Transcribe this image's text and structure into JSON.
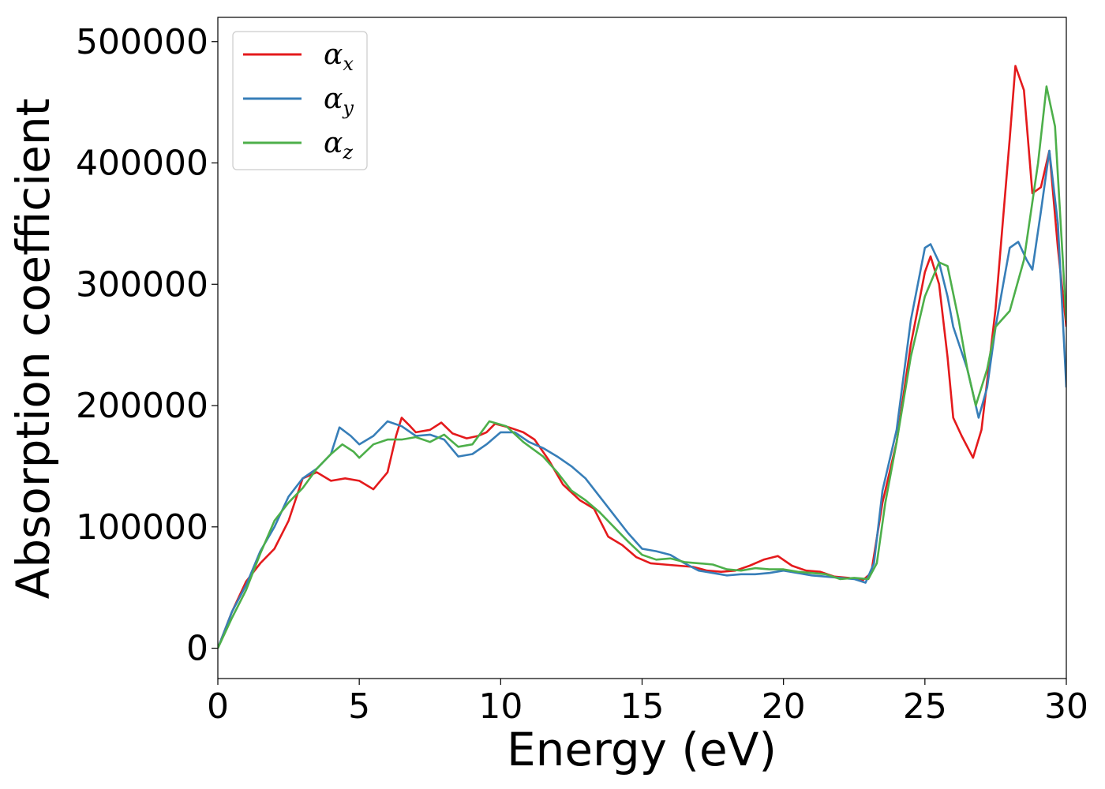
{
  "chart_data": {
    "type": "line",
    "title": "",
    "xlabel": "Energy (eV)",
    "ylabel": "Absorption coefficient",
    "xlim": [
      0,
      30
    ],
    "ylim": [
      -25000,
      520000
    ],
    "xticks": [
      "0",
      "5",
      "10",
      "15",
      "20",
      "25",
      "30"
    ],
    "yticks": [
      "0",
      "100000",
      "200000",
      "300000",
      "400000",
      "500000"
    ],
    "grid": false,
    "legend_position": "top-left",
    "series": [
      {
        "name": "α",
        "subscript": "x",
        "color": "#e41a1c",
        "points": [
          [
            0,
            0
          ],
          [
            0.5,
            30000
          ],
          [
            1,
            55000
          ],
          [
            1.5,
            70000
          ],
          [
            2,
            82000
          ],
          [
            2.5,
            105000
          ],
          [
            3,
            140000
          ],
          [
            3.5,
            145000
          ],
          [
            4,
            138000
          ],
          [
            4.5,
            140000
          ],
          [
            5,
            138000
          ],
          [
            5.5,
            131000
          ],
          [
            6,
            145000
          ],
          [
            6.3,
            175000
          ],
          [
            6.5,
            190000
          ],
          [
            6.8,
            183000
          ],
          [
            7,
            178000
          ],
          [
            7.5,
            180000
          ],
          [
            7.9,
            186000
          ],
          [
            8.3,
            177000
          ],
          [
            8.8,
            173000
          ],
          [
            9.2,
            175000
          ],
          [
            9.5,
            178000
          ],
          [
            9.8,
            185000
          ],
          [
            10.3,
            182000
          ],
          [
            10.8,
            178000
          ],
          [
            11.2,
            172000
          ],
          [
            11.7,
            155000
          ],
          [
            12.2,
            135000
          ],
          [
            12.8,
            122000
          ],
          [
            13.3,
            115000
          ],
          [
            13.8,
            92000
          ],
          [
            14.3,
            85000
          ],
          [
            14.8,
            75000
          ],
          [
            15.3,
            70000
          ],
          [
            15.8,
            69000
          ],
          [
            16.3,
            68000
          ],
          [
            16.8,
            67000
          ],
          [
            17.3,
            64000
          ],
          [
            17.8,
            63000
          ],
          [
            18.3,
            64000
          ],
          [
            18.8,
            68000
          ],
          [
            19.3,
            73000
          ],
          [
            19.8,
            76000
          ],
          [
            20.3,
            68000
          ],
          [
            20.8,
            64000
          ],
          [
            21.3,
            63000
          ],
          [
            21.8,
            59000
          ],
          [
            22.3,
            58000
          ],
          [
            22.8,
            56000
          ],
          [
            23.1,
            62000
          ],
          [
            23.5,
            120000
          ],
          [
            24,
            170000
          ],
          [
            24.5,
            250000
          ],
          [
            25,
            310000
          ],
          [
            25.2,
            323000
          ],
          [
            25.5,
            300000
          ],
          [
            25.8,
            240000
          ],
          [
            26,
            190000
          ],
          [
            26.3,
            175000
          ],
          [
            26.7,
            157000
          ],
          [
            27,
            180000
          ],
          [
            27.5,
            280000
          ],
          [
            28,
            420000
          ],
          [
            28.2,
            480000
          ],
          [
            28.5,
            460000
          ],
          [
            28.8,
            375000
          ],
          [
            29.1,
            380000
          ],
          [
            29.4,
            410000
          ],
          [
            29.7,
            330000
          ],
          [
            30,
            265000
          ]
        ]
      },
      {
        "name": "α",
        "subscript": "y",
        "color": "#377eb8",
        "points": [
          [
            0,
            0
          ],
          [
            0.5,
            30000
          ],
          [
            1,
            52000
          ],
          [
            1.5,
            80000
          ],
          [
            2,
            100000
          ],
          [
            2.5,
            125000
          ],
          [
            3,
            140000
          ],
          [
            3.5,
            148000
          ],
          [
            4,
            160000
          ],
          [
            4.3,
            182000
          ],
          [
            4.7,
            175000
          ],
          [
            5,
            168000
          ],
          [
            5.5,
            175000
          ],
          [
            6,
            187000
          ],
          [
            6.5,
            183000
          ],
          [
            7,
            175000
          ],
          [
            7.5,
            176000
          ],
          [
            8,
            172000
          ],
          [
            8.5,
            158000
          ],
          [
            9,
            160000
          ],
          [
            9.5,
            168000
          ],
          [
            10,
            178000
          ],
          [
            10.5,
            178000
          ],
          [
            11,
            170000
          ],
          [
            11.5,
            165000
          ],
          [
            12,
            158000
          ],
          [
            12.5,
            150000
          ],
          [
            13,
            140000
          ],
          [
            13.5,
            125000
          ],
          [
            14,
            110000
          ],
          [
            14.5,
            95000
          ],
          [
            15,
            82000
          ],
          [
            15.5,
            80000
          ],
          [
            16,
            77000
          ],
          [
            16.5,
            70000
          ],
          [
            17,
            64000
          ],
          [
            17.5,
            62000
          ],
          [
            18,
            60000
          ],
          [
            18.5,
            61000
          ],
          [
            19,
            61000
          ],
          [
            19.5,
            62000
          ],
          [
            20,
            64000
          ],
          [
            20.5,
            62000
          ],
          [
            21,
            60000
          ],
          [
            21.5,
            59000
          ],
          [
            22,
            58000
          ],
          [
            22.5,
            57000
          ],
          [
            22.9,
            54000
          ],
          [
            23.2,
            70000
          ],
          [
            23.5,
            130000
          ],
          [
            24,
            180000
          ],
          [
            24.5,
            270000
          ],
          [
            25,
            330000
          ],
          [
            25.2,
            333000
          ],
          [
            25.5,
            318000
          ],
          [
            25.8,
            290000
          ],
          [
            26,
            265000
          ],
          [
            26.5,
            230000
          ],
          [
            26.9,
            190000
          ],
          [
            27.2,
            215000
          ],
          [
            27.5,
            265000
          ],
          [
            28,
            330000
          ],
          [
            28.3,
            335000
          ],
          [
            28.6,
            320000
          ],
          [
            28.8,
            312000
          ],
          [
            29.1,
            360000
          ],
          [
            29.4,
            410000
          ],
          [
            29.7,
            350000
          ],
          [
            30,
            215000
          ]
        ]
      },
      {
        "name": "α",
        "subscript": "z",
        "color": "#4daf4a",
        "points": [
          [
            0,
            0
          ],
          [
            0.5,
            25000
          ],
          [
            1,
            48000
          ],
          [
            1.5,
            78000
          ],
          [
            2,
            105000
          ],
          [
            2.5,
            120000
          ],
          [
            3,
            132000
          ],
          [
            3.5,
            148000
          ],
          [
            4,
            160000
          ],
          [
            4.4,
            168000
          ],
          [
            4.8,
            162000
          ],
          [
            5,
            157000
          ],
          [
            5.5,
            168000
          ],
          [
            6,
            172000
          ],
          [
            6.5,
            172000
          ],
          [
            7,
            174000
          ],
          [
            7.5,
            170000
          ],
          [
            8,
            176000
          ],
          [
            8.5,
            166000
          ],
          [
            9,
            168000
          ],
          [
            9.6,
            187000
          ],
          [
            10.2,
            183000
          ],
          [
            10.8,
            170000
          ],
          [
            11.5,
            158000
          ],
          [
            12,
            145000
          ],
          [
            12.5,
            130000
          ],
          [
            13,
            122000
          ],
          [
            13.5,
            112000
          ],
          [
            14,
            100000
          ],
          [
            14.5,
            88000
          ],
          [
            15,
            77000
          ],
          [
            15.5,
            73000
          ],
          [
            16,
            74000
          ],
          [
            16.5,
            71000
          ],
          [
            17,
            70000
          ],
          [
            17.5,
            69000
          ],
          [
            18,
            65000
          ],
          [
            18.5,
            64000
          ],
          [
            19,
            66000
          ],
          [
            19.5,
            65000
          ],
          [
            20,
            65000
          ],
          [
            20.5,
            63000
          ],
          [
            21,
            62000
          ],
          [
            21.5,
            61000
          ],
          [
            22,
            57000
          ],
          [
            22.5,
            58000
          ],
          [
            23,
            57000
          ],
          [
            23.3,
            70000
          ],
          [
            23.6,
            120000
          ],
          [
            24,
            170000
          ],
          [
            24.5,
            240000
          ],
          [
            25,
            290000
          ],
          [
            25.5,
            318000
          ],
          [
            25.8,
            315000
          ],
          [
            26.2,
            270000
          ],
          [
            26.5,
            230000
          ],
          [
            26.8,
            200000
          ],
          [
            27.2,
            230000
          ],
          [
            27.5,
            265000
          ],
          [
            28,
            278000
          ],
          [
            28.5,
            320000
          ],
          [
            29,
            400000
          ],
          [
            29.3,
            463000
          ],
          [
            29.6,
            430000
          ],
          [
            30,
            270000
          ]
        ]
      }
    ]
  }
}
